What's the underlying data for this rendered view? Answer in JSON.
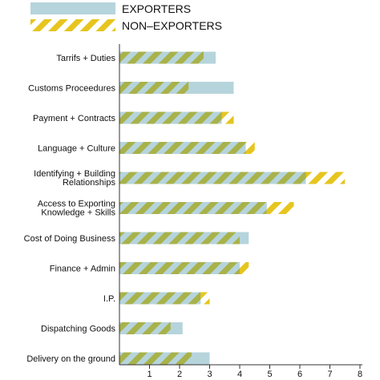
{
  "chart_data": {
    "type": "bar",
    "orientation": "horizontal",
    "colors": {
      "exporters": "#b6d4dc",
      "non_exporters_stripe_a": "#e6c51f",
      "non_exporters_stripe_b": "#ffffff",
      "overlap_stripe": "#a8b24a"
    },
    "legend": {
      "placement": "top-left",
      "entries": [
        "EXPORTERS",
        "NON–EXPORTERS"
      ]
    },
    "categories": [
      [
        "Tarrifs + Duties"
      ],
      [
        "Customs Proceedures"
      ],
      [
        "Payment + Contracts"
      ],
      [
        "Language + Culture"
      ],
      [
        "Identifying + Building",
        "Relationships"
      ],
      [
        "Access to Exporting",
        "Knowledge + Skills"
      ],
      [
        "Cost of Doing Business"
      ],
      [
        "Finance + Admin"
      ],
      [
        "I.P."
      ],
      [
        "Dispatching Goods"
      ],
      [
        "Delivery on the ground"
      ]
    ],
    "series": [
      {
        "name": "EXPORTERS",
        "values": [
          3.2,
          3.8,
          3.4,
          4.2,
          6.2,
          4.9,
          4.3,
          4.0,
          2.7,
          2.1,
          3.0
        ]
      },
      {
        "name": "NON–EXPORTERS",
        "values": [
          2.8,
          2.3,
          3.8,
          4.5,
          7.5,
          5.8,
          4.0,
          4.3,
          3.0,
          1.7,
          2.4
        ]
      }
    ],
    "xticks": [
      "1",
      "2",
      "3",
      "4",
      "5",
      "6",
      "7",
      "8"
    ],
    "xlim": [
      0,
      8
    ],
    "grid": false
  }
}
